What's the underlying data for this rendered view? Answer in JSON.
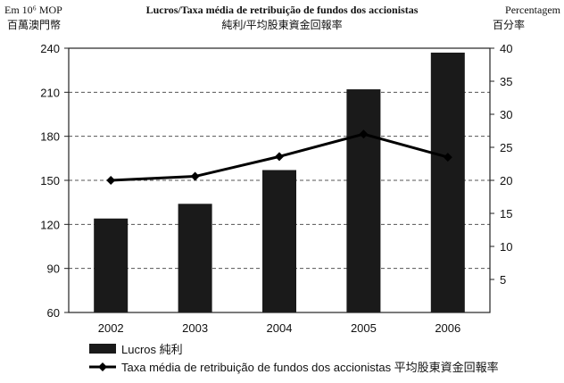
{
  "header": {
    "left_unit_line1": "Em 10⁶ MOP",
    "left_unit_line2": "百萬澳門幣",
    "title_line1": "Lucros/Taxa média de retribuição de fundos dos accionistas",
    "title_line2": "純利/平均股東資金回報率",
    "right_unit_line1": "Percentagem",
    "right_unit_line2": "百分率"
  },
  "chart_data": {
    "type": "bar",
    "categories": [
      "2002",
      "2003",
      "2004",
      "2005",
      "2006"
    ],
    "series": [
      {
        "name": "Lucros 純利",
        "kind": "bar",
        "axis": "left",
        "values": [
          124,
          134,
          157,
          212,
          237
        ],
        "color": "#1a1a1a"
      },
      {
        "name": "Taxa média de retribuição de fundos dos accionistas 平均股東資金回報率",
        "kind": "line",
        "axis": "right",
        "values": [
          20,
          20.6,
          23.6,
          27,
          23.5
        ],
        "color": "#000000"
      }
    ],
    "y_left": {
      "min": 60,
      "max": 240,
      "ticks": [
        60,
        90,
        120,
        150,
        180,
        210,
        240
      ]
    },
    "y_right": {
      "min": 0,
      "max": 40,
      "ticks": [
        5,
        10,
        15,
        20,
        25,
        30,
        35,
        40
      ]
    },
    "grid": "horizontal-dashed",
    "legend_position": "bottom-left"
  }
}
